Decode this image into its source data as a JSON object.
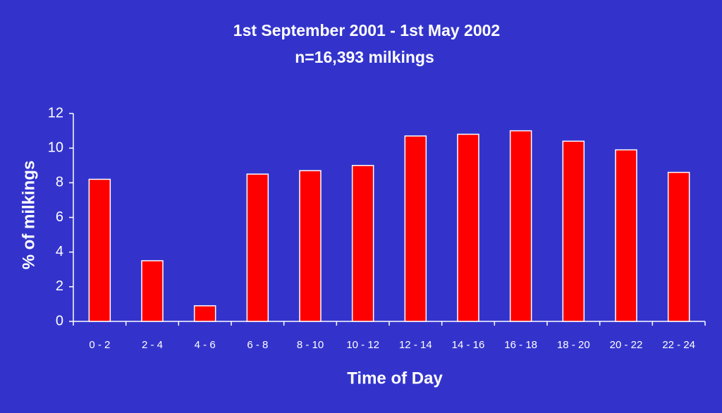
{
  "chart_data": {
    "type": "bar",
    "title": "1st September 2001 - 1st May 2002",
    "subtitle": "n=16,393 milkings",
    "x_label": "Time of Day",
    "y_label": "% of milkings",
    "categories": [
      "0 - 2",
      "2 - 4",
      "4 - 6",
      "6 - 8",
      "8 - 10",
      "10 - 12",
      "12 - 14",
      "14 - 16",
      "16 - 18",
      "18 - 20",
      "20 - 22",
      "22 - 24"
    ],
    "values": [
      8.2,
      3.5,
      0.9,
      8.5,
      8.7,
      9.0,
      10.7,
      10.8,
      11.0,
      10.4,
      9.9,
      8.6
    ],
    "color": "#ff0000",
    "ylim": [
      0,
      12
    ],
    "yticks": [
      0,
      2,
      4,
      6,
      8,
      10,
      12
    ],
    "grid": false
  }
}
